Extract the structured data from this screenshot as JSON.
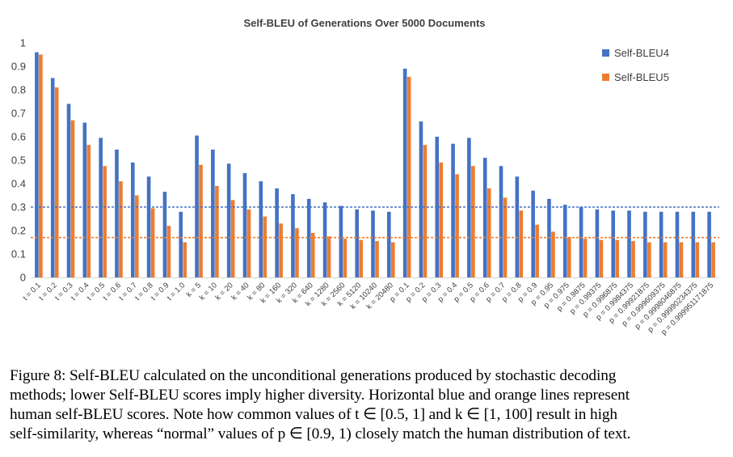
{
  "chart_data": {
    "type": "bar",
    "title": "Self-BLEU of Generations Over 5000 Documents",
    "categories": [
      "t = 0.1",
      "t = 0.2",
      "t = 0.3",
      "t = 0.4",
      "t = 0.5",
      "t = 0.6",
      "t = 0.7",
      "t = 0.8",
      "t = 0.9",
      "t = 1.0",
      "k = 5",
      "k = 10",
      "k = 20",
      "k = 40",
      "k = 80",
      "k = 160",
      "k = 320",
      "k = 640",
      "k = 1280",
      "k = 2560",
      "k = 5120",
      "k = 10240",
      "k = 20480",
      "p = 0.1",
      "p = 0.2",
      "p = 0.3",
      "p = 0.4",
      "p = 0.5",
      "p = 0.6",
      "p = 0.7",
      "p = 0.8",
      "p = 0.9",
      "p = 0.95",
      "p = 0.975",
      "p = 0.9875",
      "p = 0.99375",
      "p = 0.996875",
      "p = 0.9984375",
      "p = 0.99921875",
      "p = 0.999609375",
      "p = 0.9998046875",
      "p = 0.99990234375",
      "p = 0.999951171875"
    ],
    "series": [
      {
        "name": "Self-BLEU4",
        "color": "#4472C4",
        "values": [
          0.96,
          0.85,
          0.74,
          0.66,
          0.595,
          0.545,
          0.49,
          0.43,
          0.365,
          0.28,
          0.605,
          0.545,
          0.485,
          0.445,
          0.41,
          0.38,
          0.355,
          0.335,
          0.32,
          0.305,
          0.29,
          0.285,
          0.28,
          0.89,
          0.665,
          0.6,
          0.57,
          0.595,
          0.51,
          0.475,
          0.43,
          0.37,
          0.335,
          0.31,
          0.3,
          0.29,
          0.285,
          0.285,
          0.28,
          0.28,
          0.28,
          0.28,
          0.28
        ]
      },
      {
        "name": "Self-BLEU5",
        "color": "#ED7D31",
        "values": [
          0.95,
          0.81,
          0.67,
          0.565,
          0.475,
          0.41,
          0.35,
          0.295,
          0.22,
          0.15,
          0.48,
          0.39,
          0.33,
          0.29,
          0.26,
          0.23,
          0.21,
          0.19,
          0.175,
          0.165,
          0.16,
          0.155,
          0.15,
          0.855,
          0.565,
          0.49,
          0.44,
          0.475,
          0.38,
          0.34,
          0.285,
          0.225,
          0.195,
          0.17,
          0.165,
          0.16,
          0.16,
          0.155,
          0.15,
          0.15,
          0.15,
          0.15,
          0.15
        ]
      }
    ],
    "human_lines": [
      {
        "series": "Self-BLEU4",
        "value": 0.3,
        "color": "#4472C4"
      },
      {
        "series": "Self-BLEU5",
        "value": 0.17,
        "color": "#ED7D31"
      }
    ],
    "ylim": [
      0,
      1
    ],
    "yticks": [
      "0",
      "0.1",
      "0.2",
      "0.3",
      "0.4",
      "0.5",
      "0.6",
      "0.7",
      "0.8",
      "0.9",
      "1"
    ],
    "legend_position": "top-right"
  },
  "caption": {
    "lines": [
      "Figure 8: Self-BLEU calculated on the unconditional generations produced by stochastic decoding",
      "methods; lower Self-BLEU scores imply higher diversity. Horizontal blue and orange lines represent",
      "human self-BLEU scores. Note how common values of t ∈ [0.5, 1] and k ∈ [1, 100] result in high",
      "self-similarity, whereas “normal” values of p ∈ [0.9, 1) closely match the human distribution of text."
    ]
  }
}
